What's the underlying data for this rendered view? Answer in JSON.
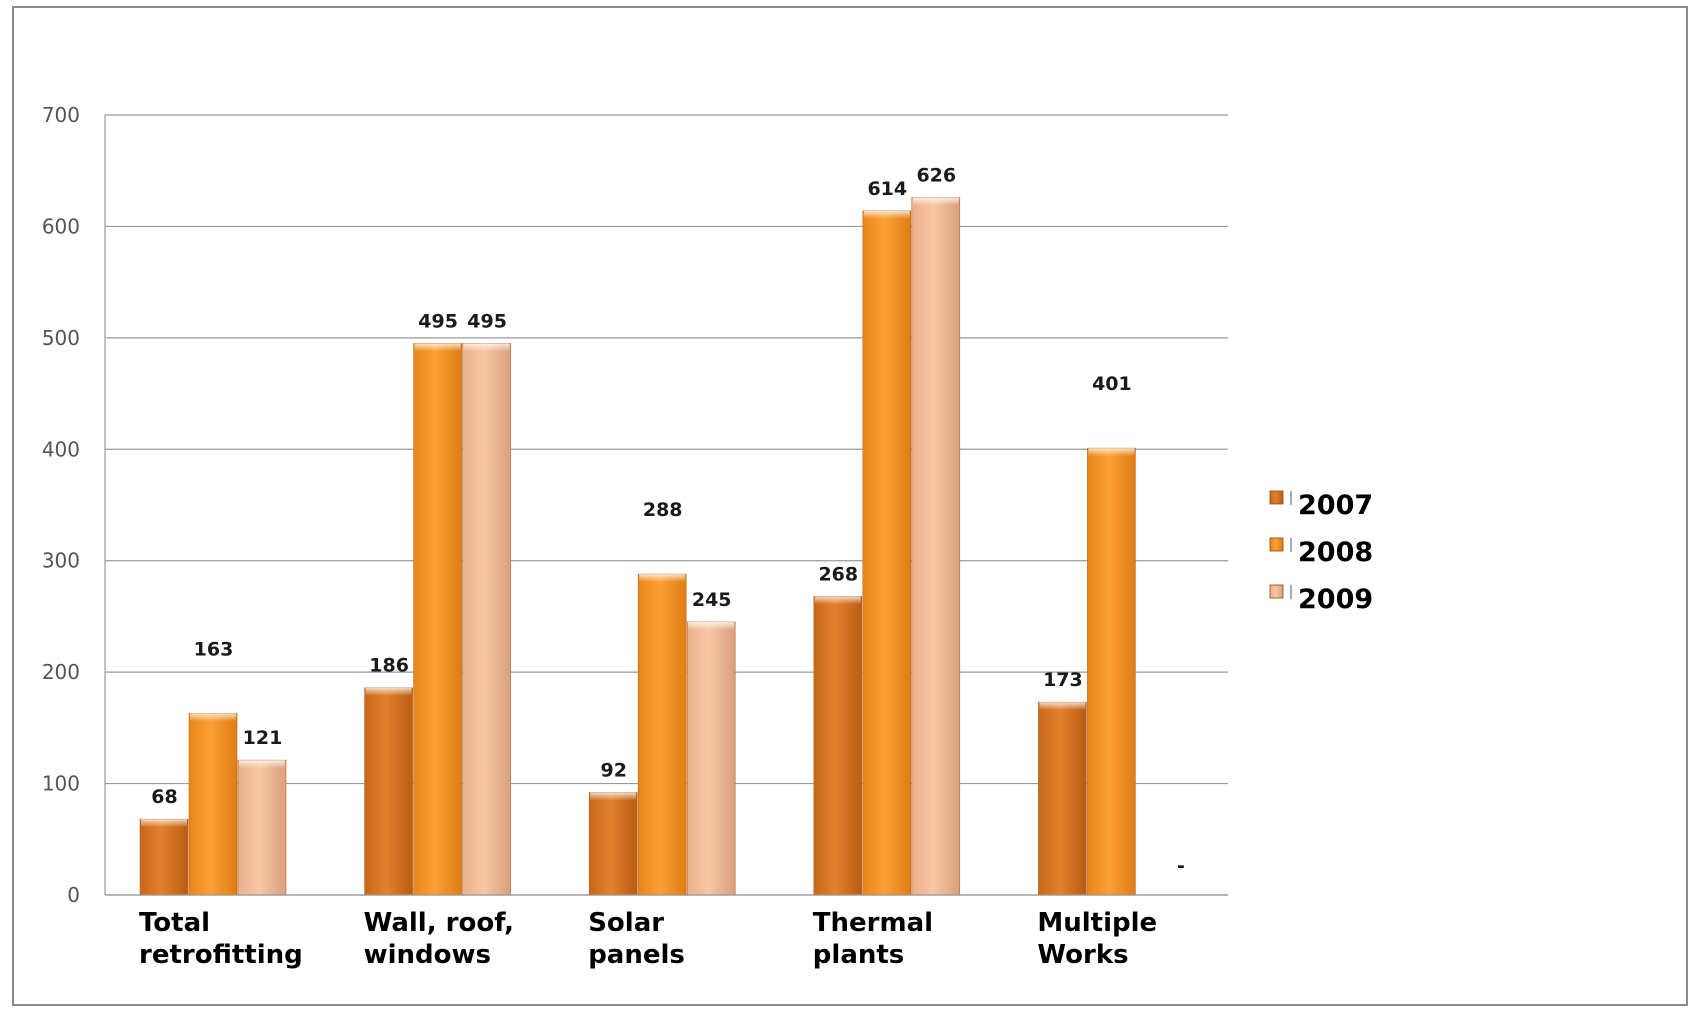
{
  "chart_data": {
    "type": "bar",
    "title": "",
    "xlabel": "",
    "ylabel": "",
    "ylim": [
      0,
      700
    ],
    "yticks": [
      0,
      100,
      200,
      300,
      400,
      500,
      600,
      700
    ],
    "grid": true,
    "legend_position": "right",
    "categories": [
      [
        "Total",
        "retrofitting"
      ],
      [
        "Wall, roof,",
        "windows"
      ],
      [
        "Solar",
        "panels"
      ],
      [
        "Thermal",
        "plants"
      ],
      [
        "Multiple",
        "Works"
      ]
    ],
    "series": [
      {
        "name": "2007",
        "values": [
          68,
          186,
          92,
          268,
          173
        ],
        "labels": [
          "68",
          "186",
          "92",
          "268",
          "173"
        ],
        "color": "#d9751f"
      },
      {
        "name": "2008",
        "values": [
          163,
          495,
          288,
          614,
          401
        ],
        "labels": [
          "163",
          "495",
          "288",
          "614",
          "401"
        ],
        "color": "#f7921e"
      },
      {
        "name": "2009",
        "values": [
          121,
          495,
          245,
          626,
          0
        ],
        "labels": [
          "121",
          "495",
          "245",
          "626",
          "-"
        ],
        "color": "#f2b78f"
      }
    ]
  }
}
